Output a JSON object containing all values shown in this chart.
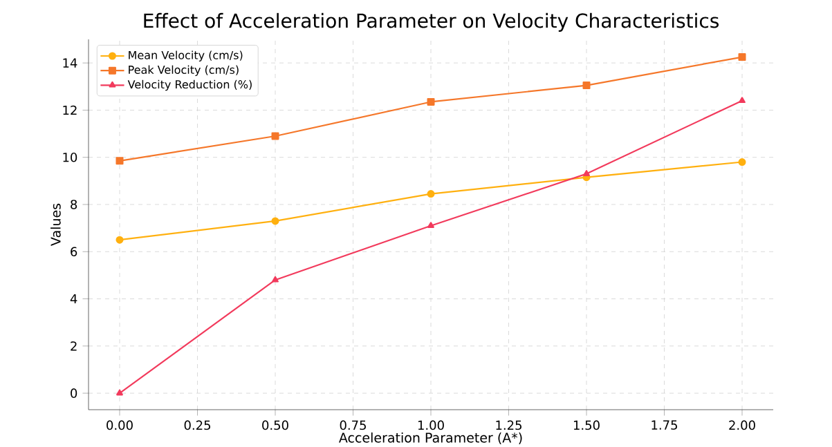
{
  "chart_data": {
    "type": "line",
    "title": "Effect of Acceleration Parameter on Velocity Characteristics",
    "xlabel": "Acceleration Parameter (A*)",
    "ylabel": "Values",
    "x": [
      0,
      0.5,
      1,
      1.5,
      2
    ],
    "series": [
      {
        "name": "Mean Velocity (cm/s)",
        "color": "#ffb00f",
        "marker": "circle",
        "values": [
          6.5,
          7.3,
          8.45,
          9.15,
          9.8
        ]
      },
      {
        "name": "Peak Velocity (cm/s)",
        "color": "#f5772a",
        "marker": "square",
        "values": [
          9.85,
          10.9,
          12.35,
          13.05,
          14.25
        ]
      },
      {
        "name": "Velocity Reduction (%)",
        "color": "#f23a5c",
        "marker": "triangle",
        "values": [
          0,
          4.8,
          7.1,
          9.3,
          12.4
        ]
      }
    ],
    "xlim": [
      -0.1,
      2.1
    ],
    "ylim": [
      -0.7,
      15
    ],
    "xticks": [
      {
        "value": 0,
        "label": "0.00"
      },
      {
        "value": 0.25,
        "label": "0.25"
      },
      {
        "value": 0.5,
        "label": "0.50"
      },
      {
        "value": 0.75,
        "label": "0.75"
      },
      {
        "value": 1,
        "label": "1.00"
      },
      {
        "value": 1.25,
        "label": "1.25"
      },
      {
        "value": 1.5,
        "label": "1.50"
      },
      {
        "value": 1.75,
        "label": "1.75"
      },
      {
        "value": 2,
        "label": "2.00"
      }
    ],
    "yticks": [
      0,
      2,
      4,
      6,
      8,
      10,
      12,
      14
    ],
    "grid": true,
    "legend": "top left",
    "line_style": "solid"
  }
}
